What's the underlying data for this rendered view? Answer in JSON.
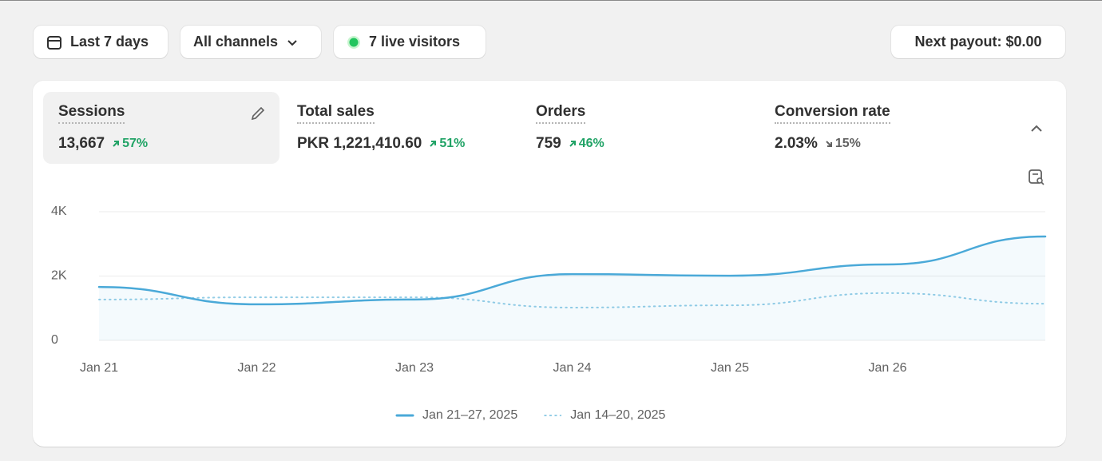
{
  "toolbar": {
    "date_range": "Last 7 days",
    "channels": "All channels",
    "live_visitors": "7 live visitors",
    "payout": "Next payout: $0.00"
  },
  "metrics": [
    {
      "label": "Sessions",
      "value": "13,667",
      "change": "57%",
      "direction": "up"
    },
    {
      "label": "Total sales",
      "value": "PKR 1,221,410.60",
      "change": "51%",
      "direction": "up"
    },
    {
      "label": "Orders",
      "value": "759",
      "change": "46%",
      "direction": "up"
    },
    {
      "label": "Conversion rate",
      "value": "2.03%",
      "change": "15%",
      "direction": "down"
    }
  ],
  "chart_data": {
    "type": "line",
    "categories": [
      "Jan 21",
      "Jan 22",
      "Jan 23",
      "Jan 24",
      "Jan 25",
      "Jan 26",
      null
    ],
    "series": [
      {
        "name": "Jan 21–27, 2025",
        "color": "#4aa9d8",
        "style": "solid",
        "values": [
          1660,
          1120,
          1270,
          2060,
          2010,
          2360,
          3230
        ]
      },
      {
        "name": "Jan 14–20, 2025",
        "color": "#93cde6",
        "style": "dotted",
        "values": [
          1270,
          1340,
          1340,
          1020,
          1090,
          1470,
          1140
        ]
      }
    ],
    "ylim": [
      0,
      4000
    ],
    "yticks": [
      0,
      {
        "value": 2000,
        "label": "2K"
      },
      {
        "value": 4000,
        "label": "4K"
      }
    ],
    "grid": true,
    "legend": "bottom"
  }
}
